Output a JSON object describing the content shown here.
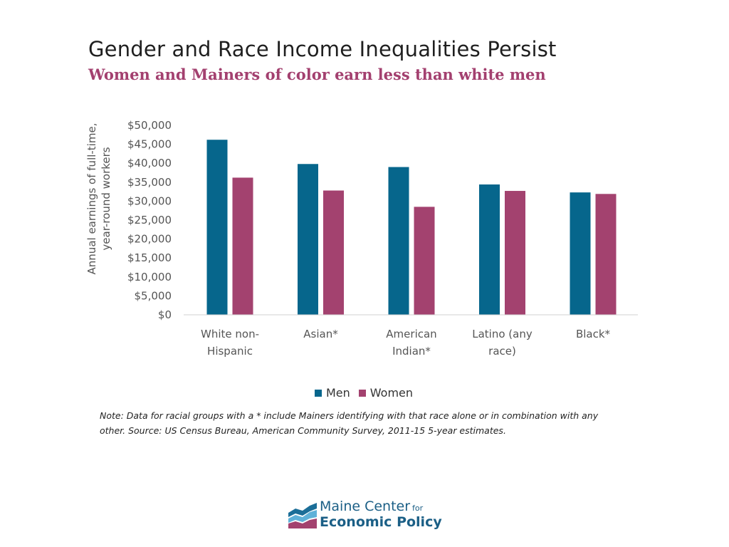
{
  "title": "Gender and Race Income Inequalities Persist",
  "subtitle": "Women and Mainers of color earn less than white men",
  "chart_data": {
    "type": "bar",
    "categories": [
      [
        "White non-",
        "Hispanic"
      ],
      [
        "Asian*"
      ],
      [
        "American",
        "Indian*"
      ],
      [
        "Latino (any",
        "race)"
      ],
      [
        "Black*"
      ]
    ],
    "series": [
      {
        "name": "Men",
        "color": "#06668c",
        "values": [
          46200,
          39800,
          39000,
          34400,
          32300
        ]
      },
      {
        "name": "Women",
        "color": "#a3426f",
        "values": [
          36200,
          32800,
          28500,
          32700,
          31900
        ]
      }
    ],
    "ylabel": [
      "Annual earnings of full-time,",
      "year-round workers"
    ],
    "ylim": [
      0,
      50000
    ],
    "yticks": [
      "$0",
      "$5,000",
      "$10,000",
      "$15,000",
      "$20,000",
      "$25,000",
      "$30,000",
      "$35,000",
      "$40,000",
      "$45,000",
      "$50,000"
    ],
    "grid": false,
    "legend_position": "bottom"
  },
  "legend": {
    "men": "Men",
    "women": "Women",
    "men_color": "#06668c",
    "women_color": "#a3426f"
  },
  "note": {
    "line1": "Note: Data for racial groups with a * include Mainers identifying with that race alone or in combination with any",
    "line2": "other.  Source: US Census Bureau, American Community Survey, 2011-15 5-year estimates."
  },
  "logo": {
    "line1": "Maine Center",
    "for": "for",
    "line2": "Economic Policy"
  }
}
